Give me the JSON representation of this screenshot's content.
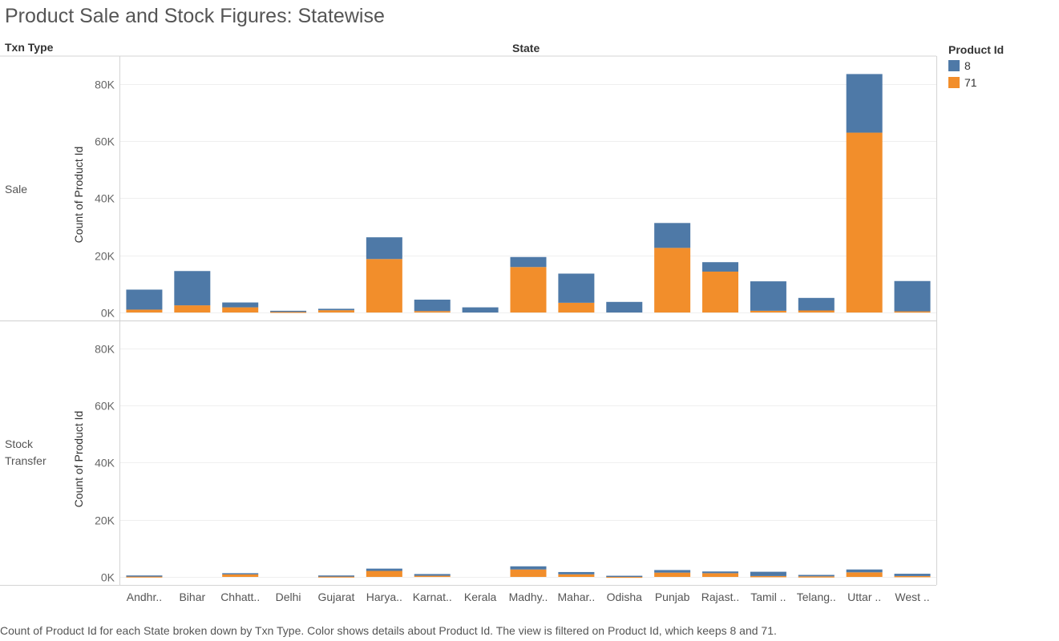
{
  "title": "Product Sale and Stock Figures: Statewise",
  "headers": {
    "row_dimension": "Txn Type",
    "column_dimension": "State"
  },
  "legend": {
    "title": "Product Id",
    "items": [
      {
        "label": "8",
        "color": "#4e79a7"
      },
      {
        "label": "71",
        "color": "#f28e2b"
      }
    ]
  },
  "caption": "Count of Product Id for each State broken down by Txn Type.  Color shows details about Product Id. The view is filtered on Product Id, which keeps 8 and 71.",
  "chart_data": {
    "type": "bar",
    "stacked": true,
    "categories": [
      "Andhr..",
      "Bihar",
      "Chhatt..",
      "Delhi",
      "Gujarat",
      "Harya..",
      "Karnat..",
      "Kerala",
      "Madhy..",
      "Mahar..",
      "Odisha",
      "Punjab",
      "Rajast..",
      "Tamil ..",
      "Telang..",
      "Uttar ..",
      "West .."
    ],
    "ylabel": "Count of Product Id",
    "ylim": [
      0,
      88000
    ],
    "yticks": [
      0,
      20000,
      40000,
      60000,
      80000
    ],
    "ytick_labels": [
      "0K",
      "20K",
      "40K",
      "60K",
      "80K"
    ],
    "grid": true,
    "legend_position": "top-right",
    "panels": [
      {
        "name": "Sale",
        "series": [
          {
            "name": "71",
            "color": "#f28e2b",
            "values": [
              1000,
              2500,
              1800,
              300,
              800,
              18700,
              500,
              0,
              15900,
              3400,
              0,
              22600,
              14300,
              600,
              700,
              62900,
              400
            ]
          },
          {
            "name": "8",
            "color": "#4e79a7",
            "values": [
              7000,
              12000,
              1700,
              300,
              500,
              7600,
              4000,
              1800,
              3500,
              10200,
              3700,
              8700,
              3300,
              10300,
              4400,
              20500,
              10600
            ]
          }
        ]
      },
      {
        "name": "Stock Transfer",
        "series": [
          {
            "name": "71",
            "color": "#f28e2b",
            "values": [
              200,
              0,
              900,
              0,
              200,
              2100,
              400,
              0,
              2600,
              900,
              100,
              1500,
              1300,
              300,
              200,
              1600,
              300
            ]
          },
          {
            "name": "8",
            "color": "#4e79a7",
            "values": [
              300,
              0,
              400,
              0,
              300,
              800,
              600,
              0,
              1100,
              800,
              300,
              900,
              600,
              1500,
              500,
              1000,
              800
            ]
          }
        ]
      }
    ]
  }
}
